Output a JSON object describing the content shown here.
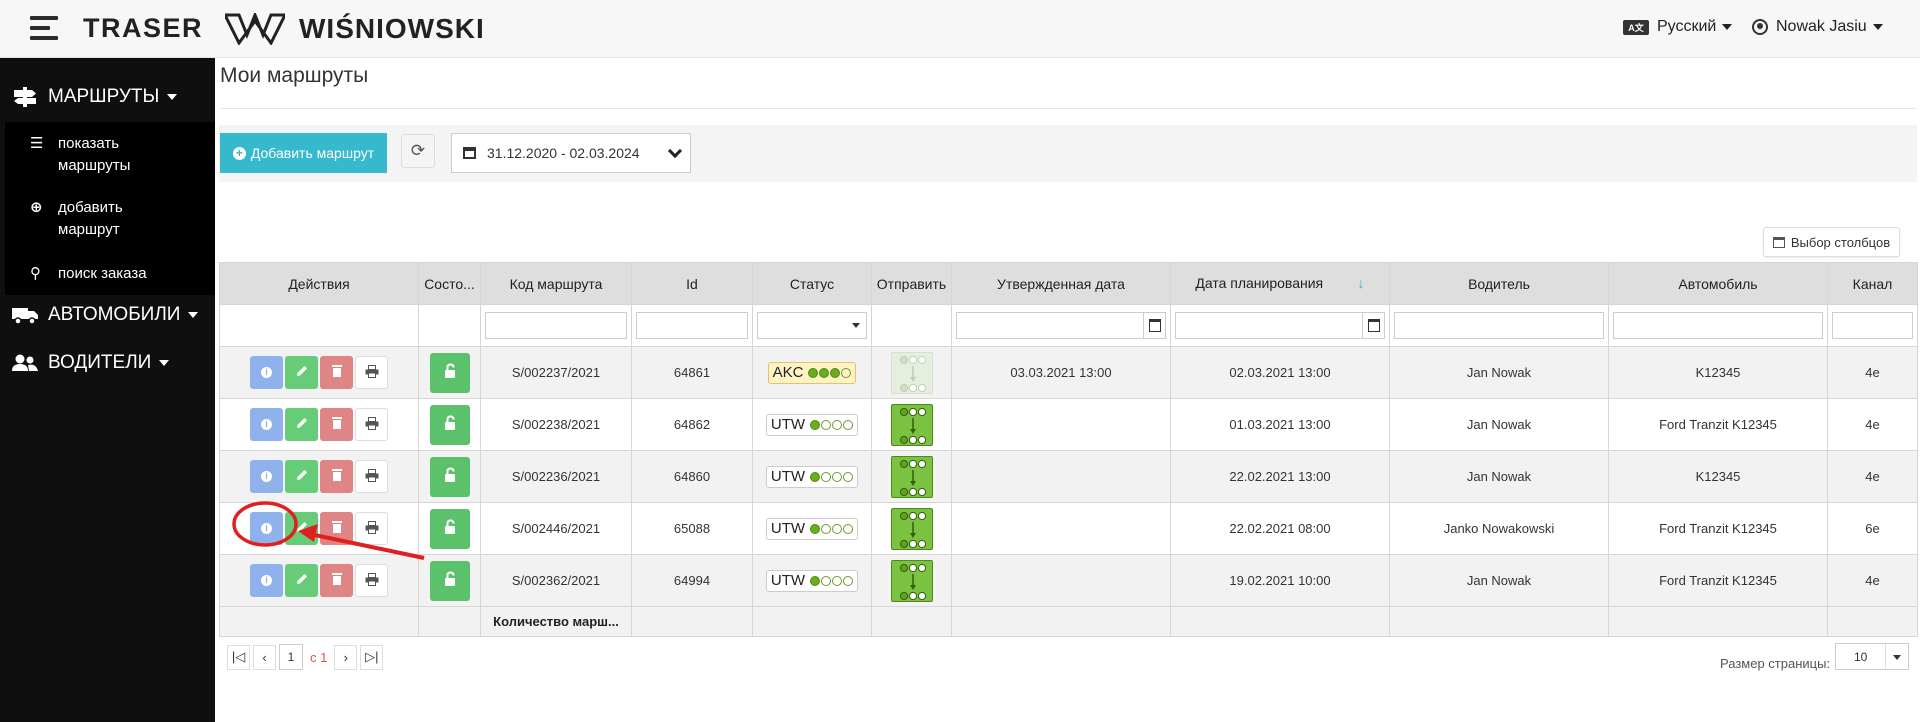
{
  "topbar": {
    "brand": "TRASER",
    "logo_text": "WIŚNIOWSKI",
    "language": "Русский",
    "user": "Nowak Jasiu"
  },
  "sidebar": {
    "routes": "МАРШРУТЫ",
    "show_routes": "показать маршруты",
    "add_route": "добавить маршрут",
    "search_order": "поиск заказа",
    "cars": "АВТОМОБИЛИ",
    "drivers": "ВОДИТЕЛИ"
  },
  "page": {
    "title": "Мои маршруты",
    "add_button": "Добавить маршрут",
    "date_range": "31.12.2020 - 02.03.2024",
    "column_select": "Выбор столбцов"
  },
  "grid": {
    "headers": {
      "actions": "Действия",
      "state": "Состо...",
      "code": "Код маршрута",
      "id": "Id",
      "status": "Статус",
      "send": "Отправить",
      "approved_date": "Утвержденная дата",
      "planned_date": "Дата планирования",
      "driver": "Водитель",
      "car": "Автомобиль",
      "channel": "Канал"
    },
    "rows": [
      {
        "code": "S/002237/2021",
        "id": "64861",
        "status": "AKC",
        "status_level": 3,
        "send_enabled": false,
        "approved_date": "03.03.2021 13:00",
        "planned_date": "02.03.2021 13:00",
        "driver": "Jan Nowak",
        "car": "K12345",
        "channel": "4e"
      },
      {
        "code": "S/002238/2021",
        "id": "64862",
        "status": "UTW",
        "status_level": 1,
        "send_enabled": true,
        "approved_date": "",
        "planned_date": "01.03.2021 13:00",
        "driver": "Jan Nowak",
        "car": "Ford Tranzit K12345",
        "channel": "4e"
      },
      {
        "code": "S/002236/2021",
        "id": "64860",
        "status": "UTW",
        "status_level": 1,
        "send_enabled": true,
        "approved_date": "",
        "planned_date": "22.02.2021 13:00",
        "driver": "Jan Nowak",
        "car": "K12345",
        "channel": "4e"
      },
      {
        "code": "S/002446/2021",
        "id": "65088",
        "status": "UTW",
        "status_level": 1,
        "send_enabled": true,
        "approved_date": "",
        "planned_date": "22.02.2021 08:00",
        "driver": "Janko Nowakowski",
        "car": "Ford Tranzit K12345",
        "channel": "6e"
      },
      {
        "code": "S/002362/2021",
        "id": "64994",
        "status": "UTW",
        "status_level": 1,
        "send_enabled": true,
        "approved_date": "",
        "planned_date": "19.02.2021 10:00",
        "driver": "Jan Nowak",
        "car": "Ford Tranzit K12345",
        "channel": "4e"
      }
    ],
    "footer_count": "Количество марш..."
  },
  "pager": {
    "current_page": "1",
    "of_label": "с 1",
    "page_size_label": "Размер страницы:",
    "page_size": "10"
  },
  "colors": {
    "accent": "#36b9cc",
    "info": "#8fb2ec",
    "edit": "#66cc77",
    "delete": "#df8585",
    "sidebar": "#0f0f0f",
    "annotation": "#e02020"
  }
}
